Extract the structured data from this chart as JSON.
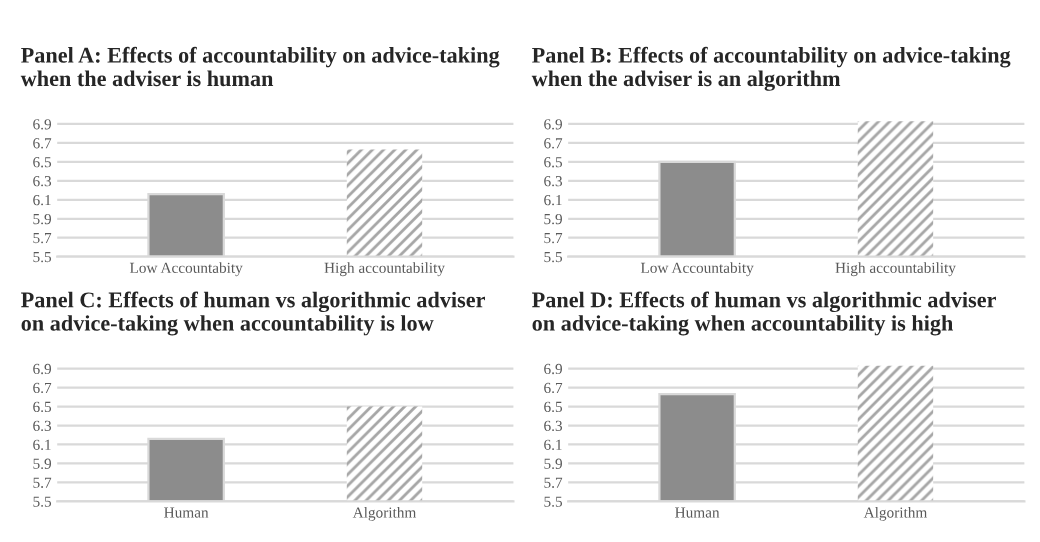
{
  "chart_data": [
    {
      "type": "bar",
      "title": "Panel A: Effects of accountability on advice-taking when the adviser is human",
      "categories": [
        "Low Accountabity",
        "High accountability"
      ],
      "values": [
        6.16,
        6.63
      ],
      "colors": [
        "#8c8c8c",
        "#a6a6a6"
      ],
      "ylim": [
        5.5,
        6.95
      ],
      "yticks": [
        5.5,
        5.7,
        5.9,
        6.1,
        6.3,
        6.5,
        6.7,
        6.9
      ],
      "grid": "y"
    },
    {
      "type": "bar",
      "title": "Panel B: Effects of accountability on advice-taking when the adviser is an algorithm",
      "categories": [
        "Low Accountabity",
        "High accountability"
      ],
      "values": [
        6.5,
        6.93
      ],
      "colors": [
        "#8c8c8c",
        "#a6a6a6"
      ],
      "ylim": [
        5.5,
        6.95
      ],
      "yticks": [
        5.5,
        5.7,
        5.9,
        6.1,
        6.3,
        6.5,
        6.7,
        6.9
      ],
      "grid": "y"
    },
    {
      "type": "bar",
      "title": "Panel C: Effects of human vs algorithmic adviser on advice-taking when accountability is low",
      "categories": [
        "Human",
        "Algorithm"
      ],
      "values": [
        6.16,
        6.5
      ],
      "colors": [
        "#8c8c8c",
        "#a6a6a6"
      ],
      "ylim": [
        5.5,
        6.95
      ],
      "yticks": [
        5.5,
        5.7,
        5.9,
        6.1,
        6.3,
        6.5,
        6.7,
        6.9
      ],
      "grid": "y"
    },
    {
      "type": "bar",
      "title": "Panel D: Effects of human vs algorithmic adviser on advice-taking when accountability is high",
      "categories": [
        "Human",
        "Algorithm"
      ],
      "values": [
        6.63,
        6.93
      ],
      "colors": [
        "#8c8c8c",
        "#a6a6a6"
      ],
      "ylim": [
        5.5,
        6.95
      ],
      "yticks": [
        5.5,
        5.7,
        5.9,
        6.1,
        6.3,
        6.5,
        6.7,
        6.9
      ],
      "grid": "y"
    }
  ]
}
